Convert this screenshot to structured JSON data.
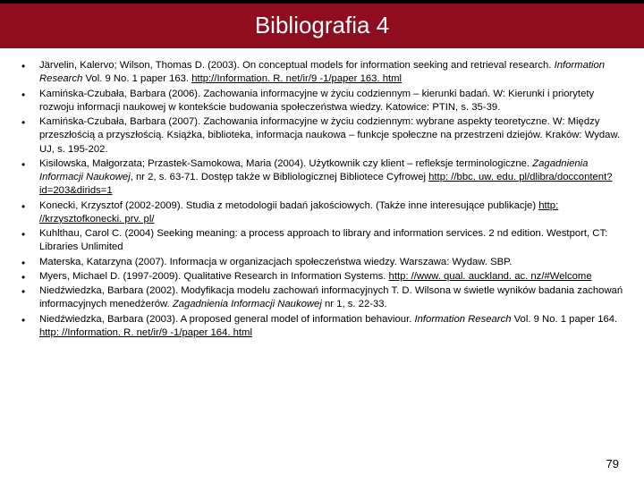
{
  "header": {
    "title": "Bibliografia 4"
  },
  "colors": {
    "header_bg": "#8e0e1f",
    "header_fg": "#ffffff",
    "text": "#000000"
  },
  "page_number": "79",
  "entries": [
    {
      "pre": "Järvelin, Kalervo; Wilson, Thomas D. (2003). On conceptual models for information seeking and retrieval research. ",
      "italic": "Information Research",
      "post": " Vol. 9 No. 1 paper 163. ",
      "link": "http://Information. R. net/ir/9 -1/paper 163. html"
    },
    {
      "pre": "Kamińska-Czubała, Barbara (2006). Zachowania informacyjne w życiu codziennym – kierunki badań. W: Kierunki i priorytety rozwoju informacji naukowej w kontekście budowania społeczeństwa wiedzy. Katowice: PTIN, s. 35-39.",
      "italic": "",
      "post": "",
      "link": ""
    },
    {
      "pre": "Kamińska-Czubała, Barbara (2007). Zachowania informacyjne w życiu codziennym: wybrane aspekty teoretyczne. W: Między przeszłością a przyszłością. Książka, biblioteka, informacja naukowa – funkcje społeczne na przestrzeni dziejów. Kraków: Wydaw. UJ, s. 195-202.",
      "italic": "",
      "post": "",
      "link": ""
    },
    {
      "pre": "Kisilowska, Małgorzata; Przastek-Samokowa, Maria (2004). Użytkownik czy klient – refleksje terminologiczne. ",
      "italic": "Zagadnienia Informacji Naukowej",
      "post": ", nr 2, s. 63-71. Dostęp także w Bibliologicznej Bibliotece Cyfrowej ",
      "link": "http: //bbc. uw. edu. pl/dlibra/doccontent? id=203&dirids=1"
    },
    {
      "pre": "Konecki, Krzysztof (2002-2009). Studia z metodologii badań jakościowych. (Także inne interesujące publikacje) ",
      "italic": "",
      "post": "",
      "link": "http: //krzysztofkonecki. prv. pl/"
    },
    {
      "pre": "Kuhlthau, Carol C. (2004) Seeking meaning: a process approach to library and information services. 2 nd edition. Westport, CT: Libraries Unlimited",
      "italic": "",
      "post": "",
      "link": ""
    },
    {
      "pre": "Materska, Katarzyna (2007). Informacja w organizacjach społeczeństwa wiedzy. Warszawa: Wydaw. SBP.",
      "italic": "",
      "post": "",
      "link": ""
    },
    {
      "pre": "Myers, Michael D. (1997-2009). Qualitative Research in Information Systems. ",
      "italic": "",
      "post": "",
      "link": "http: //www. qual. auckland. ac. nz/#Welcome"
    },
    {
      "pre": "Niedźwiedzka, Barbara (2002). Modyfikacja modelu zachowań informacyjnych T. D. Wilsona w świetle wyników badania zachowań informacyjnych menedżerów. ",
      "italic": "Zagadnienia Informacji Naukowej",
      "post": " nr 1, s. 22-33.",
      "link": ""
    },
    {
      "pre": "Niedźwiedzka, Barbara (2003). A proposed general model of information behaviour. ",
      "italic": "Information Research",
      "post": " Vol. 9 No. 1 paper 164. ",
      "link": "http: //Information. R. net/ir/9 -1/paper 164. html"
    }
  ]
}
